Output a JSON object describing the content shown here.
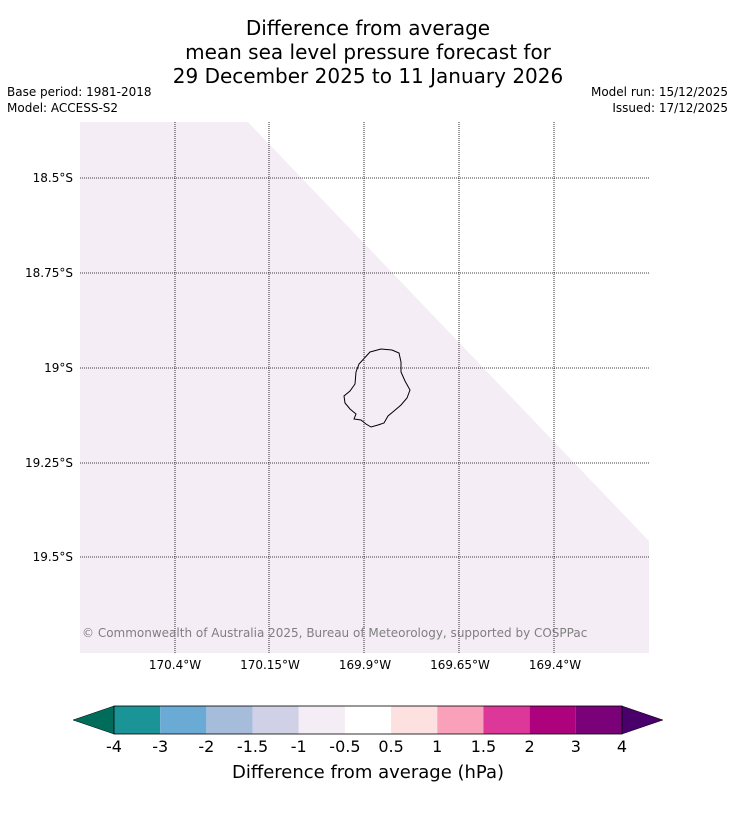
{
  "title": {
    "line1": "Difference from average",
    "line2": "mean sea level pressure forecast for",
    "line3": "29 December 2025 to 11 January 2026"
  },
  "meta": {
    "base_period": "Base period: 1981-2018",
    "model": "Model: ACCESS-S2",
    "model_run": "Model run: 15/12/2025",
    "issued": "Issued: 17/12/2025"
  },
  "map": {
    "lat_labels": [
      "18.5°S",
      "18.75°S",
      "19°S",
      "19.25°S",
      "19.5°S"
    ],
    "lon_labels": [
      "170.4°W",
      "170.15°W",
      "169.9°W",
      "169.65°W",
      "169.4°W"
    ],
    "copyright": "© Commonwealth of Australia 2025, Bureau of Meteorology, supported by COSPPac",
    "island": "Niue",
    "anomaly_fill_color": "#f4edf5"
  },
  "colorbar": {
    "title": "Difference from average (hPa)",
    "ticks": [
      "-4",
      "-3",
      "-2",
      "-1.5",
      "-1",
      "-0.5",
      "0.5",
      "1",
      "1.5",
      "2",
      "3",
      "4"
    ],
    "under_color": "#006d5a",
    "over_color": "#4a006a",
    "colors": [
      "#1a9496",
      "#6aabd6",
      "#a6bcdb",
      "#d0d1e6",
      "#f4edf5",
      "#ffffff",
      "#fde0e0",
      "#f9a0bb",
      "#dd3799",
      "#ae017e",
      "#7a0177"
    ]
  }
}
